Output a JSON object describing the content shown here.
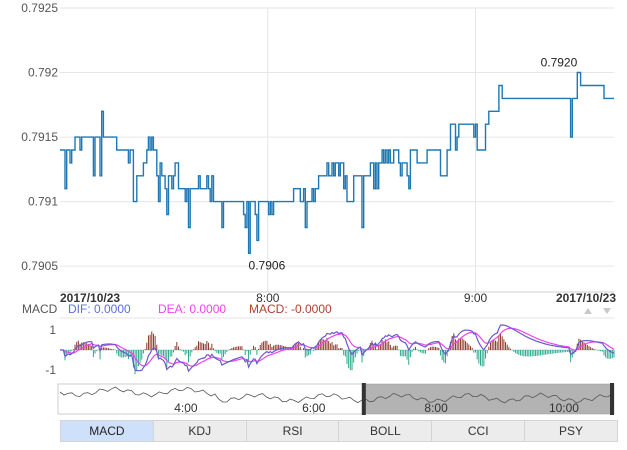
{
  "chart_data": {
    "type": "line",
    "title": "",
    "x_axis": {
      "start_label": "2017/10/23",
      "end_label": "2017/10/23",
      "ticks": [
        {
          "label": "8:00",
          "minute": 480
        },
        {
          "label": "9:00",
          "minute": 540
        }
      ],
      "range_minutes": [
        420,
        580
      ]
    },
    "y_axis": {
      "range": [
        0.7903,
        0.7925
      ],
      "ticks": [
        {
          "label": "0.7925",
          "value": 0.7925
        },
        {
          "label": "0.792",
          "value": 0.792
        },
        {
          "label": "0.7915",
          "value": 0.7915
        },
        {
          "label": "0.791",
          "value": 0.791
        },
        {
          "label": "0.7905",
          "value": 0.7905
        }
      ]
    },
    "grid": true,
    "series": [
      {
        "color": "#1f78b4",
        "values": [
          0.7914,
          0.7914,
          0.7914,
          0.7911,
          0.7914,
          0.7914,
          0.7913,
          0.7914,
          0.7914,
          0.7915,
          0.7915,
          0.7915,
          0.7914,
          0.7915,
          0.7915,
          0.7915,
          0.7915,
          0.7915,
          0.7915,
          0.7915,
          0.7912,
          0.7915,
          0.7915,
          0.7915,
          0.7912,
          0.7917,
          0.7915,
          0.7915,
          0.7915,
          0.7915,
          0.7915,
          0.7915,
          0.7915,
          0.7915,
          0.7914,
          0.7914,
          0.7914,
          0.7914,
          0.7914,
          0.7914,
          0.7914,
          0.7913,
          0.7914,
          0.7914,
          0.791,
          0.791,
          0.7912,
          0.7912,
          0.7912,
          0.7912,
          0.7913,
          0.7913,
          0.7914,
          0.7915,
          0.7914,
          0.7915,
          0.7914,
          0.7914,
          0.7912,
          0.791,
          0.7913,
          0.7912,
          0.7912,
          0.7911,
          0.7909,
          0.7912,
          0.7912,
          0.7911,
          0.7912,
          0.7913,
          0.7913,
          0.7911,
          0.7911,
          0.7911,
          0.7911,
          0.791,
          0.7911,
          0.7908,
          0.7911,
          0.7911,
          0.7911,
          0.7911,
          0.7911,
          0.7912,
          0.7911,
          0.7911,
          0.7911,
          0.7911,
          0.7912,
          0.7911,
          0.791,
          0.7912,
          0.791,
          0.791,
          0.791,
          0.791,
          0.791,
          0.7908,
          0.791,
          0.791,
          0.791,
          0.791,
          0.791,
          0.791,
          0.791,
          0.791,
          0.791,
          0.791,
          0.791,
          0.791,
          0.7909,
          0.7908,
          0.791,
          0.7906,
          0.791,
          0.791,
          0.791,
          0.7909,
          0.7907,
          0.791,
          0.791,
          0.791,
          0.791,
          0.791,
          0.791,
          0.7909,
          0.791,
          0.7909,
          0.791,
          0.791,
          0.791,
          0.791,
          0.791,
          0.791,
          0.791,
          0.791,
          0.791,
          0.791,
          0.791,
          0.791,
          0.7911,
          0.7911,
          0.7911,
          0.7911,
          0.791,
          0.791,
          0.7911,
          0.7908,
          0.791,
          0.791,
          0.791,
          0.7911,
          0.791,
          0.7911,
          0.7911,
          0.7912,
          0.7912,
          0.7912,
          0.7912,
          0.7912,
          0.7913,
          0.7912,
          0.7912,
          0.7913,
          0.7912,
          0.7913,
          0.7913,
          0.7912,
          0.7913,
          0.7913,
          0.7911,
          0.7912,
          0.791,
          0.791,
          0.791,
          0.791,
          0.7912,
          0.7912,
          0.7912,
          0.7912,
          0.7912,
          0.7908,
          0.7912,
          0.7912,
          0.7912,
          0.7912,
          0.7913,
          0.7913,
          0.7911,
          0.7913,
          0.7911,
          0.7913,
          0.7913,
          0.7914,
          0.7913,
          0.7914,
          0.7913,
          0.7914,
          0.7913,
          0.7913,
          0.7914,
          0.7914,
          0.7914,
          0.7913,
          0.7912,
          0.7913,
          0.7913,
          0.7913,
          0.7912,
          0.7911,
          0.7914,
          0.7914,
          0.7914,
          0.7914,
          0.7913,
          0.7913,
          0.7913,
          0.7913,
          0.7913,
          0.7913,
          0.7914,
          0.7914,
          0.7914,
          0.7914,
          0.7914,
          0.7914,
          0.7914,
          0.7914,
          0.7912,
          0.7912,
          0.7912,
          0.7912,
          0.7914,
          0.7914,
          0.7916,
          0.7916,
          0.7916,
          0.7914,
          0.7915,
          0.7916,
          0.7916,
          0.7916,
          0.7916,
          0.7916,
          0.7916,
          0.7916,
          0.7916,
          0.7916,
          0.7915,
          0.7916,
          0.7914,
          0.7914,
          0.7914,
          0.7914,
          0.7914,
          0.7916,
          0.7916,
          0.7917,
          0.7917,
          0.7917,
          0.7917,
          0.7917,
          0.7917,
          0.7919,
          0.7919,
          0.7918,
          0.7918,
          0.7918,
          0.7918,
          0.7918,
          0.7918,
          0.7918,
          0.7918,
          0.7918,
          0.7918,
          0.7918,
          0.7918,
          0.7918,
          0.7918,
          0.7918,
          0.7918,
          0.7918,
          0.7918,
          0.7918,
          0.7918,
          0.7918,
          0.7918,
          0.7918,
          0.7918,
          0.7918,
          0.7918,
          0.7918,
          0.7918,
          0.7918,
          0.7918,
          0.7918,
          0.7918,
          0.7918,
          0.7918,
          0.7918,
          0.7918,
          0.7918,
          0.7918,
          0.7918,
          0.7918,
          0.7918,
          0.7915,
          0.7918,
          0.7918,
          0.7918,
          0.792,
          0.792,
          0.7919,
          0.7919,
          0.7919,
          0.7919,
          0.7919,
          0.7919,
          0.7919,
          0.7919,
          0.7919,
          0.7919,
          0.7919,
          0.7919,
          0.7919,
          0.7919,
          0.7918,
          0.7918,
          0.7918,
          0.7918,
          0.7918,
          0.7918,
          0.7918
        ]
      }
    ],
    "annotations": [
      {
        "label": "0.7920",
        "value": 0.792,
        "kind": "max"
      },
      {
        "label": "0.7906",
        "value": 0.7906,
        "kind": "min"
      }
    ],
    "macd": {
      "range": [
        -1.4,
        1.4
      ],
      "ticks": [
        {
          "label": "1",
          "value": 1
        },
        {
          "label": "-1",
          "value": -1
        }
      ],
      "legend": {
        "name": "MACD",
        "dif_label": "DIF: 0.0000",
        "dea_label": "DEA: 0.0000",
        "macd_label": "MACD: -0.0000"
      },
      "dif_color": "#6a5acd",
      "dea_color": "#ee44ee",
      "positive_color": "#8b3a2a",
      "negative_color": "#2aa88c"
    },
    "navigator": {
      "ticks": [
        {
          "label": "4:00"
        },
        {
          "label": "6:00"
        },
        {
          "label": "8:00"
        },
        {
          "label": "10:00"
        }
      ],
      "selected_range": [
        0.55,
        1.0
      ]
    },
    "indicator_tabs": [
      {
        "label": "MACD",
        "active": true
      },
      {
        "label": "KDJ",
        "active": false
      },
      {
        "label": "RSI",
        "active": false
      },
      {
        "label": "BOLL",
        "active": false
      },
      {
        "label": "CCI",
        "active": false
      },
      {
        "label": "PSY",
        "active": false
      }
    ]
  }
}
